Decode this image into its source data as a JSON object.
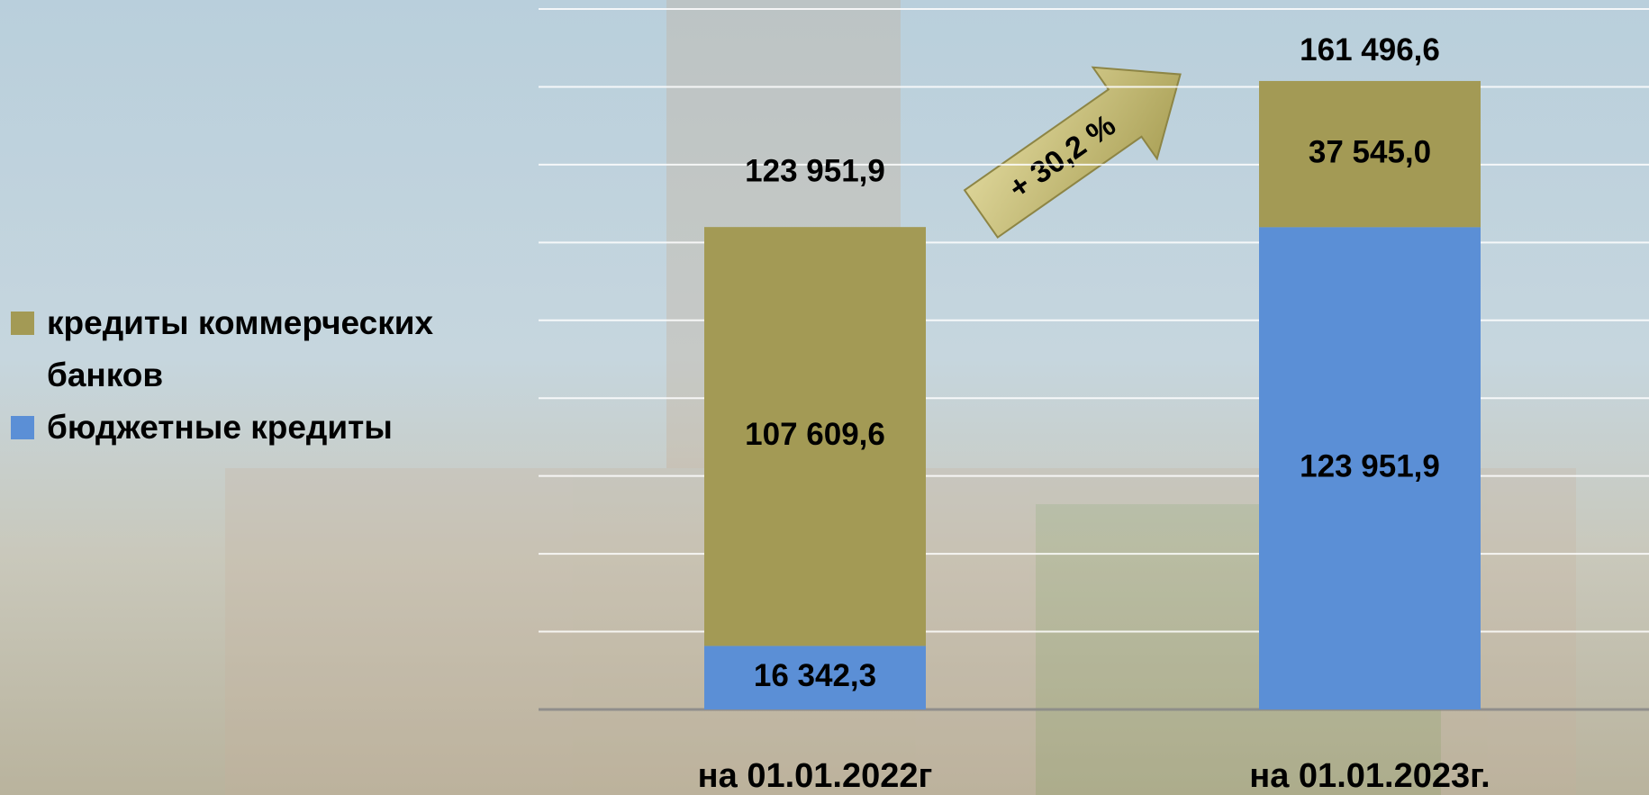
{
  "chart_data": {
    "type": "stacked_bar",
    "categories": [
      "на 01.01.2022г",
      "на 01.01.2023г."
    ],
    "series": [
      {
        "name": "бюджетные кредиты",
        "color": "#5b8fd6",
        "values": [
          16342.3,
          123951.9
        ],
        "value_labels": [
          "16 342,3",
          "123 951,9"
        ]
      },
      {
        "name": "кредиты коммерческих банков",
        "color": "#a39a55",
        "values": [
          107609.6,
          37545.0
        ],
        "value_labels": [
          "107 609,6",
          "37 545,0"
        ]
      }
    ],
    "totals": [
      123951.9,
      161496.6
    ],
    "total_labels": [
      "123 951,9",
      "161 496,6"
    ],
    "annotation": "+ 30,2 %",
    "ylim": [
      0,
      180000
    ],
    "yticks": [
      0,
      20000,
      40000,
      60000,
      80000,
      100000,
      120000,
      140000,
      160000,
      180000
    ],
    "grid": true
  }
}
